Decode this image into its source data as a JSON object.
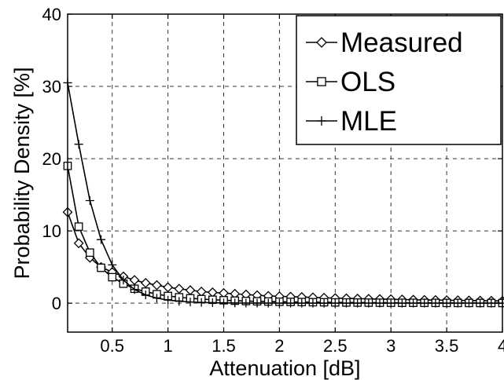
{
  "chart_data": {
    "type": "line",
    "xlabel": "Attenuation [dB]",
    "ylabel": "Probability Density [%]",
    "xlim": [
      0.1,
      4
    ],
    "ylim": [
      -4,
      40
    ],
    "x_ticks": [
      "0.5",
      "1",
      "1.5",
      "2",
      "2.5",
      "3",
      "3.5",
      "4"
    ],
    "y_ticks": [
      "0",
      "10",
      "20",
      "30",
      "40"
    ],
    "grid": true,
    "grid_style": "dashed",
    "legend_position": "top-right",
    "x": [
      0.1,
      0.2,
      0.3,
      0.4,
      0.5,
      0.6,
      0.7,
      0.8,
      0.9,
      1.0,
      1.1,
      1.2,
      1.3,
      1.4,
      1.5,
      1.6,
      1.7,
      1.8,
      1.9,
      2.0,
      2.1,
      2.2,
      2.3,
      2.4,
      2.5,
      2.6,
      2.7,
      2.8,
      2.9,
      3.0,
      3.1,
      3.2,
      3.3,
      3.4,
      3.5,
      3.6,
      3.7,
      3.8,
      3.9,
      4.0
    ],
    "series": [
      {
        "name": "Measured",
        "marker": "diamond",
        "values": [
          12.6,
          8.3,
          6.3,
          5.0,
          4.3,
          3.7,
          3.2,
          2.8,
          2.5,
          2.2,
          2.0,
          1.8,
          1.6,
          1.5,
          1.4,
          1.3,
          1.2,
          1.1,
          1.0,
          0.95,
          0.9,
          0.85,
          0.8,
          0.75,
          0.7,
          0.67,
          0.63,
          0.6,
          0.57,
          0.54,
          0.51,
          0.48,
          0.45,
          0.43,
          0.41,
          0.39,
          0.37,
          0.35,
          0.33,
          0.31
        ]
      },
      {
        "name": "OLS",
        "marker": "square",
        "values": [
          19.0,
          10.6,
          7.0,
          4.9,
          3.6,
          2.7,
          2.0,
          1.6,
          1.25,
          1.0,
          0.82,
          0.68,
          0.57,
          0.48,
          0.41,
          0.35,
          0.3,
          0.26,
          0.23,
          0.2,
          0.18,
          0.16,
          0.14,
          0.13,
          0.11,
          0.1,
          0.09,
          0.08,
          0.07,
          0.065,
          0.06,
          0.055,
          0.05,
          0.045,
          0.04,
          0.037,
          0.034,
          0.031,
          0.028,
          0.025
        ]
      },
      {
        "name": "MLE",
        "marker": "plus",
        "values": [
          30.5,
          22.0,
          14.2,
          8.8,
          5.3,
          3.2,
          1.9,
          1.15,
          0.7,
          0.43,
          0.27,
          0.17,
          0.11,
          0.07,
          0.05,
          0.03,
          0.02,
          0.015,
          0.01,
          0.01,
          0.01,
          0.01,
          0.01,
          0.01,
          0.01,
          0.01,
          0.01,
          0.01,
          0.01,
          0.01,
          0.01,
          0.01,
          0.01,
          0.01,
          0.01,
          0.01,
          0.01,
          0.01,
          0.01,
          0.01
        ]
      }
    ]
  }
}
